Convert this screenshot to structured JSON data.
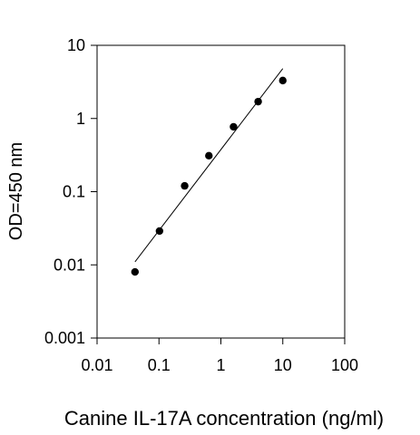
{
  "chart_data": {
    "type": "scatter",
    "title": "",
    "xlabel": "Canine IL-17A concentration (ng/ml)",
    "ylabel": "OD=450 nm",
    "xscale": "log",
    "yscale": "log",
    "xlim": [
      0.01,
      100
    ],
    "ylim": [
      0.001,
      10
    ],
    "grid": false,
    "legend": "none",
    "x_ticks": [
      "0.01",
      "0.1",
      "1",
      "10",
      "100"
    ],
    "y_ticks": [
      "0.001",
      "0.01",
      "0.1",
      "1",
      "10"
    ],
    "series": [
      {
        "x": [
          0.041,
          0.102,
          0.26,
          0.64,
          1.6,
          4.0,
          10.0
        ],
        "y": [
          0.008,
          0.029,
          0.12,
          0.31,
          0.77,
          1.7,
          3.3
        ],
        "marker": "circle",
        "color": "#000000"
      }
    ],
    "fit_line": {
      "x": [
        0.041,
        10.0
      ],
      "y": [
        0.011,
        4.8
      ],
      "color": "#000000"
    }
  }
}
